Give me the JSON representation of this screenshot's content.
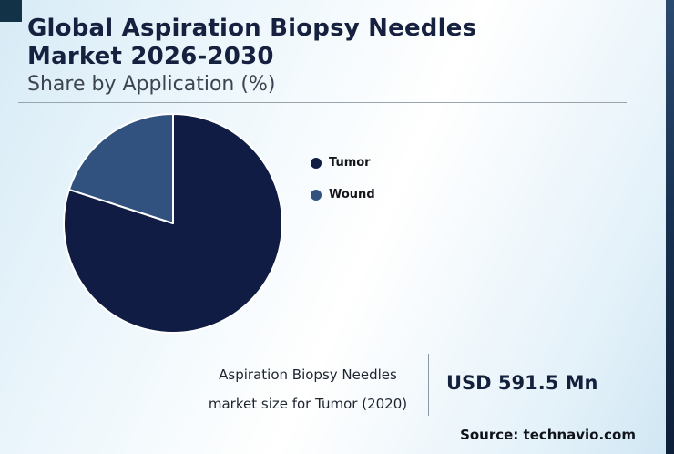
{
  "header": {
    "title_line1": "Global Aspiration Biopsy Needles",
    "title_line2": "Market 2026-2030",
    "subtitle": "Share by Application (%)"
  },
  "chart_data": {
    "type": "pie",
    "title": "Global Aspiration Biopsy Needles Market 2026-2030 — Share by Application (%)",
    "categories": [
      "Tumor",
      "Wound"
    ],
    "values": [
      80,
      20
    ],
    "colors": [
      "#101c44",
      "#31517f"
    ],
    "legend_position": "right",
    "start_angle_deg": -90,
    "direction": "clockwise"
  },
  "footer": {
    "note_line1": "Aspiration Biopsy Needles",
    "note_line2": "market size for Tumor (2020)",
    "value": "USD 591.5 Mn",
    "source": "Source: technavio.com"
  },
  "theme": {
    "title_color": "#16203f",
    "subtitle_color": "#3d4451",
    "background_blue": "#d7ebf6",
    "corner_accent": "#123247",
    "edge_accent": "#16304f",
    "slice_stroke": "#ffffff"
  }
}
